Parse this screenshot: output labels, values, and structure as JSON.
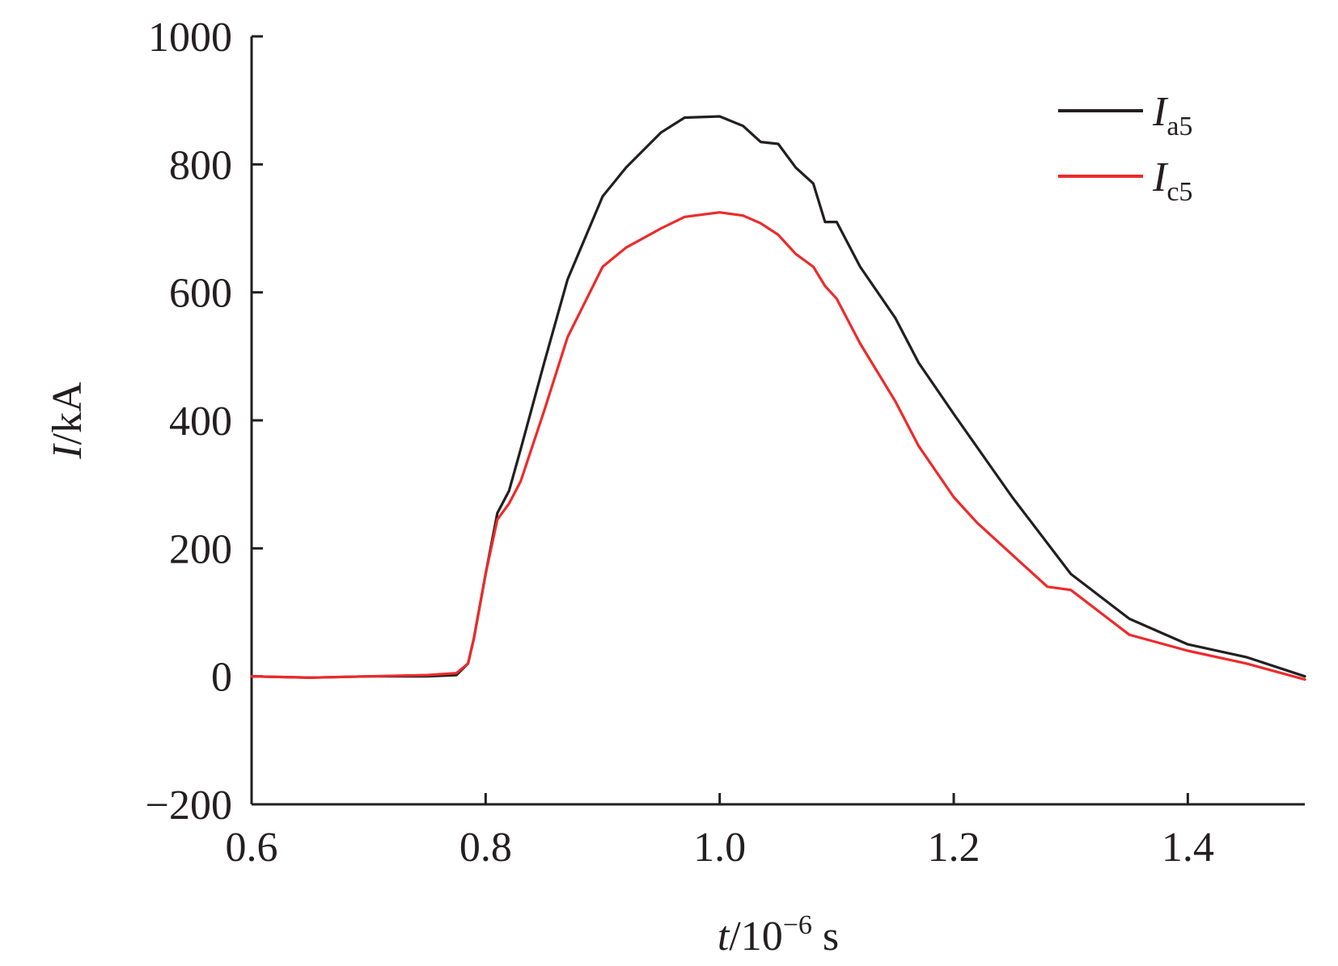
{
  "chart_data": {
    "type": "line",
    "xlabel": {
      "var": "t",
      "unit": "/10",
      "exp": "−6",
      "tail": " s"
    },
    "ylabel": {
      "var": "I",
      "unit": "/kA"
    },
    "xlim": [
      0.6,
      1.5
    ],
    "ylim": [
      -200,
      1000
    ],
    "xticks": [
      "0.6",
      "0.8",
      "1.0",
      "1.2",
      "1.4"
    ],
    "xtick_values": [
      0.6,
      0.8,
      1.0,
      1.2,
      1.4
    ],
    "yticks": [
      "−200",
      "0",
      "200",
      "400",
      "600",
      "800",
      "1000"
    ],
    "ytick_values": [
      -200,
      0,
      200,
      400,
      600,
      800,
      1000
    ],
    "grid": false,
    "legend_position": "top-right",
    "series": [
      {
        "name": "Ia5",
        "label_main": "I",
        "label_sub": "a5",
        "color": "#231f20",
        "x": [
          0.6,
          0.65,
          0.7,
          0.75,
          0.775,
          0.785,
          0.79,
          0.8,
          0.81,
          0.82,
          0.83,
          0.85,
          0.87,
          0.9,
          0.92,
          0.95,
          0.97,
          1.0,
          1.02,
          1.035,
          1.05,
          1.065,
          1.08,
          1.09,
          1.1,
          1.12,
          1.15,
          1.17,
          1.2,
          1.25,
          1.3,
          1.35,
          1.4,
          1.45,
          1.5
        ],
        "y": [
          0,
          -2,
          0,
          0,
          2,
          20,
          60,
          160,
          255,
          290,
          355,
          490,
          620,
          750,
          795,
          850,
          873,
          875,
          860,
          835,
          832,
          795,
          770,
          710,
          710,
          640,
          560,
          490,
          410,
          280,
          160,
          90,
          50,
          30,
          0
        ]
      },
      {
        "name": "Ic5",
        "label_main": "I",
        "label_sub": "c5",
        "color": "#ee2a2a",
        "x": [
          0.6,
          0.65,
          0.7,
          0.75,
          0.775,
          0.785,
          0.79,
          0.8,
          0.81,
          0.82,
          0.83,
          0.85,
          0.87,
          0.9,
          0.92,
          0.95,
          0.97,
          1.0,
          1.02,
          1.035,
          1.05,
          1.065,
          1.08,
          1.09,
          1.1,
          1.12,
          1.15,
          1.17,
          1.2,
          1.22,
          1.25,
          1.28,
          1.3,
          1.35,
          1.4,
          1.45,
          1.5
        ],
        "y": [
          0,
          -2,
          0,
          2,
          5,
          20,
          60,
          160,
          245,
          270,
          305,
          415,
          530,
          640,
          670,
          700,
          718,
          725,
          720,
          708,
          690,
          660,
          640,
          610,
          590,
          520,
          430,
          360,
          280,
          240,
          190,
          140,
          135,
          65,
          40,
          20,
          -5
        ]
      }
    ]
  }
}
